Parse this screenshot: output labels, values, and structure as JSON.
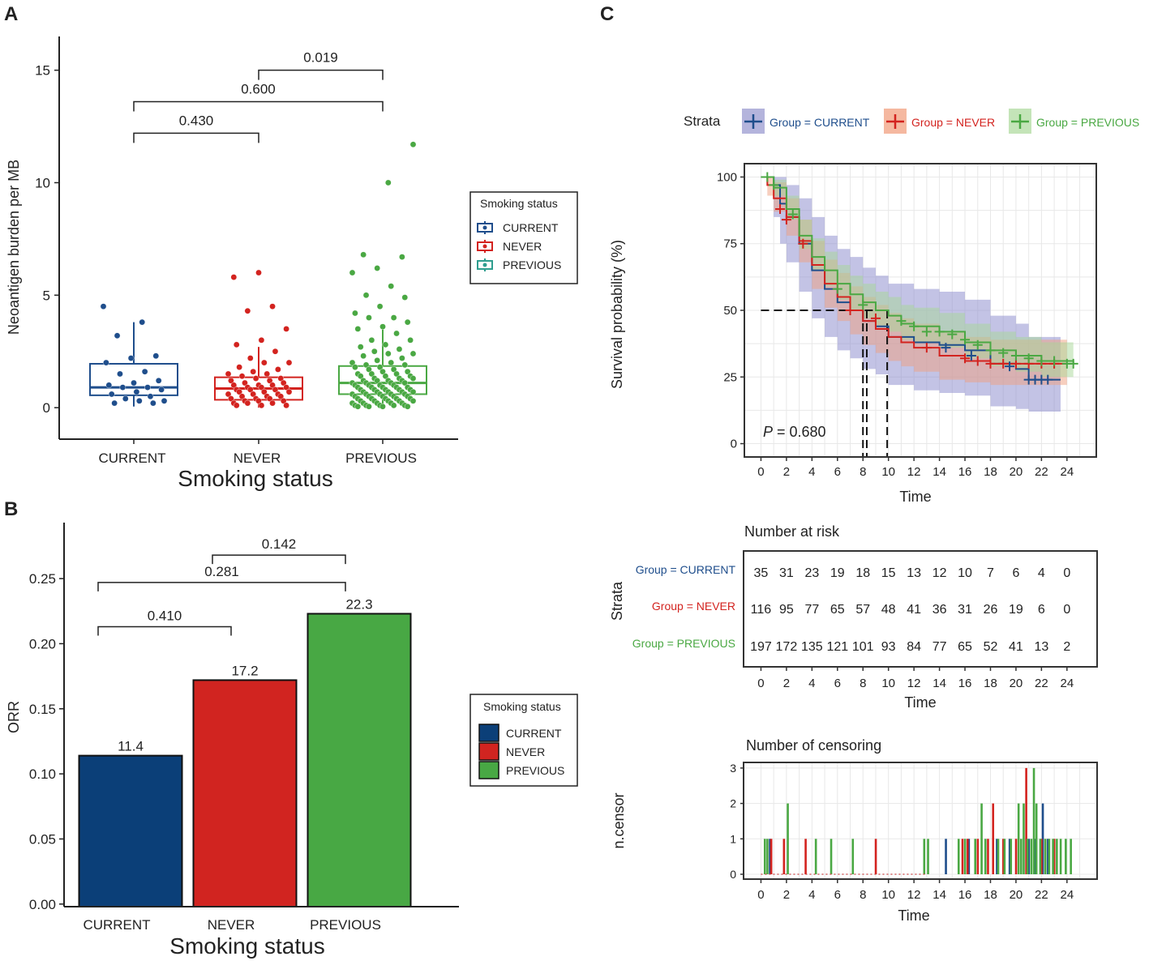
{
  "colors": {
    "current": "#1f4e8c",
    "never": "#d3231f",
    "previous": "#4aa843",
    "current_bar": "#0b3f78",
    "never_bar": "#d12420",
    "previous_bar": "#48a844",
    "previous_legend_box": "#2f9e8f"
  },
  "panels": {
    "a": "A",
    "b": "B",
    "c": "C"
  },
  "legend": {
    "title": "Smoking status",
    "items": [
      "CURRENT",
      "NEVER",
      "PREVIOUS"
    ]
  },
  "chart_data": [
    {
      "id": "A",
      "type": "box",
      "title": "",
      "xlabel": "Smoking status",
      "ylabel": "Neoantigen burden per MB",
      "categories": [
        "CURRENT",
        "NEVER",
        "PREVIOUS"
      ],
      "ylim": [
        -1.4,
        16.5
      ],
      "yticks": [
        0,
        5,
        10,
        15
      ],
      "boxes": [
        {
          "name": "CURRENT",
          "q1": 0.55,
          "median": 0.9,
          "q3": 1.95,
          "whisker_low": 0.05,
          "whisker_high": 3.8
        },
        {
          "name": "NEVER",
          "q1": 0.35,
          "median": 0.85,
          "q3": 1.35,
          "whisker_low": 0.0,
          "whisker_high": 2.7
        },
        {
          "name": "PREVIOUS",
          "q1": 0.6,
          "median": 1.1,
          "q3": 1.85,
          "whisker_low": 0.0,
          "whisker_high": 3.6
        }
      ],
      "points": {
        "CURRENT": [
          4.5,
          3.8,
          3.2,
          2.3,
          2.2,
          2.0,
          1.6,
          1.5,
          1.2,
          1.1,
          1.0,
          0.9,
          0.9,
          0.8,
          0.7,
          0.6,
          0.5,
          0.4,
          0.3,
          0.3,
          0.2,
          0.2
        ],
        "NEVER": [
          6.0,
          5.8,
          4.5,
          4.3,
          3.5,
          3.0,
          2.8,
          2.5,
          2.2,
          2.0,
          2.0,
          1.8,
          1.7,
          1.6,
          1.5,
          1.5,
          1.4,
          1.3,
          1.3,
          1.2,
          1.2,
          1.1,
          1.1,
          1.0,
          1.0,
          1.0,
          0.9,
          0.9,
          0.9,
          0.8,
          0.8,
          0.8,
          0.7,
          0.7,
          0.7,
          0.6,
          0.6,
          0.6,
          0.5,
          0.5,
          0.5,
          0.4,
          0.4,
          0.4,
          0.3,
          0.3,
          0.3,
          0.2,
          0.2,
          0.2,
          0.1,
          0.1,
          0.1
        ],
        "PREVIOUS": [
          11.7,
          10.0,
          6.8,
          6.7,
          6.2,
          6.0,
          5.4,
          5.0,
          4.9,
          4.5,
          4.2,
          4.0,
          4.0,
          3.8,
          3.6,
          3.5,
          3.3,
          3.0,
          3.0,
          2.8,
          2.7,
          2.6,
          2.5,
          2.4,
          2.4,
          2.3,
          2.2,
          2.1,
          2.0,
          2.0,
          1.9,
          1.9,
          1.8,
          1.8,
          1.7,
          1.7,
          1.6,
          1.6,
          1.5,
          1.5,
          1.5,
          1.4,
          1.4,
          1.4,
          1.3,
          1.3,
          1.3,
          1.2,
          1.2,
          1.2,
          1.2,
          1.1,
          1.1,
          1.1,
          1.1,
          1.0,
          1.0,
          1.0,
          1.0,
          0.9,
          0.9,
          0.9,
          0.9,
          0.9,
          0.8,
          0.8,
          0.8,
          0.8,
          0.8,
          0.7,
          0.7,
          0.7,
          0.7,
          0.7,
          0.6,
          0.6,
          0.6,
          0.6,
          0.6,
          0.5,
          0.5,
          0.5,
          0.5,
          0.5,
          0.4,
          0.4,
          0.4,
          0.4,
          0.4,
          0.3,
          0.3,
          0.3,
          0.3,
          0.3,
          0.2,
          0.2,
          0.2,
          0.2,
          0.2,
          0.1,
          0.1,
          0.1,
          0.1,
          0.1,
          0.05,
          0.05,
          0.05,
          0.05
        ]
      },
      "comparisons": [
        {
          "from": "CURRENT",
          "to": "NEVER",
          "p": "0.430",
          "y": 12.2
        },
        {
          "from": "CURRENT",
          "to": "PREVIOUS",
          "p": "0.600",
          "y": 13.6
        },
        {
          "from": "NEVER",
          "to": "PREVIOUS",
          "p": "0.019",
          "y": 15.0
        }
      ]
    },
    {
      "id": "B",
      "type": "bar",
      "title": "",
      "xlabel": "Smoking status",
      "ylabel": "ORR",
      "categories": [
        "CURRENT",
        "NEVER",
        "PREVIOUS"
      ],
      "values": [
        0.114,
        0.172,
        0.223
      ],
      "labels": [
        "11.4",
        "17.2",
        "22.3"
      ],
      "ylim": [
        -0.002,
        0.293
      ],
      "yticks": [
        0.0,
        0.05,
        0.1,
        0.15,
        0.2,
        0.25
      ],
      "ytick_labels": [
        "0.00",
        "0.05",
        "0.10",
        "0.15",
        "0.20",
        "0.25"
      ],
      "comparisons": [
        {
          "from": "CURRENT",
          "to": "NEVER",
          "p": "0.410",
          "y": 0.213
        },
        {
          "from": "CURRENT",
          "to": "PREVIOUS",
          "p": "0.281",
          "y": 0.247
        },
        {
          "from": "NEVER",
          "to": "PREVIOUS",
          "p": "0.142",
          "y": 0.268
        }
      ]
    },
    {
      "id": "C-survival",
      "type": "line",
      "title": "",
      "xlabel": "Time",
      "ylabel": "Survival probability (%)",
      "xlim": [
        -1.3,
        26.3
      ],
      "ylim": [
        -5,
        105
      ],
      "xticks": [
        0,
        2,
        4,
        6,
        8,
        10,
        12,
        14,
        16,
        18,
        20,
        22,
        24
      ],
      "yticks": [
        0,
        25,
        50,
        75,
        100
      ],
      "strata_label": "Strata",
      "legend_items": [
        "Group = CURRENT",
        "Group = NEVER",
        "Group = PREVIOUS"
      ],
      "pvalue_label": "P",
      "pvalue": "= 0.680",
      "median_line_y": 50,
      "median_times": [
        8.0,
        8.3,
        9.9
      ],
      "series": [
        {
          "name": "Group = CURRENT",
          "x": [
            0,
            1,
            1.5,
            2,
            3,
            4,
            5,
            6,
            7,
            8,
            9,
            10,
            12,
            14,
            16,
            18,
            20,
            21,
            22,
            23.5
          ],
          "y": [
            100,
            97,
            90,
            85,
            75,
            65,
            58,
            53,
            50,
            46,
            44,
            40,
            38,
            37,
            35,
            30,
            28,
            24,
            24,
            24
          ],
          "lower": [
            100,
            85,
            75,
            68,
            57,
            47,
            40,
            35,
            32,
            28,
            26,
            22,
            20,
            19,
            18,
            14,
            13,
            12,
            12,
            12
          ],
          "upper": [
            100,
            100,
            100,
            97,
            92,
            85,
            78,
            73,
            70,
            66,
            63,
            60,
            58,
            57,
            54,
            48,
            45,
            40,
            40,
            40
          ],
          "censor_x": [
            14.5,
            16.5,
            19.5,
            21,
            21.5,
            22,
            22.5
          ],
          "censor_y": [
            36,
            33,
            29,
            24,
            24,
            24,
            24
          ]
        },
        {
          "name": "Group = NEVER",
          "x": [
            0,
            0.5,
            1,
            2,
            3,
            4,
            5,
            6,
            7,
            8,
            9,
            10,
            11,
            12,
            14,
            16,
            18,
            20,
            22,
            24
          ],
          "y": [
            100,
            97,
            92,
            85,
            76,
            67,
            60,
            55,
            50,
            46,
            43,
            40,
            38,
            36,
            33,
            31,
            30,
            30,
            30,
            30
          ],
          "lower": [
            100,
            93,
            87,
            78,
            68,
            58,
            51,
            46,
            41,
            37,
            34,
            31,
            29,
            27,
            24,
            23,
            22,
            22,
            22,
            22
          ],
          "upper": [
            100,
            100,
            98,
            92,
            84,
            76,
            69,
            64,
            59,
            55,
            52,
            49,
            47,
            45,
            42,
            40,
            39,
            39,
            39,
            39
          ],
          "censor_x": [
            1.5,
            2,
            3.3,
            7,
            9,
            13,
            16,
            17,
            18,
            19,
            20,
            21,
            22,
            23
          ],
          "censor_y": [
            88,
            84,
            75,
            50,
            47,
            36,
            32,
            31,
            30,
            30,
            30,
            30,
            30,
            30
          ]
        },
        {
          "name": "Group = PREVIOUS",
          "x": [
            0,
            1,
            2,
            3,
            4,
            5,
            6,
            7,
            8,
            9,
            10,
            11,
            12,
            14,
            16,
            18,
            20,
            22,
            24.5
          ],
          "y": [
            100,
            96,
            88,
            78,
            70,
            65,
            60,
            56,
            53,
            50,
            48,
            45,
            44,
            42,
            38,
            35,
            33,
            31,
            30
          ],
          "lower": [
            100,
            93,
            84,
            73,
            65,
            59,
            54,
            50,
            47,
            44,
            42,
            39,
            38,
            36,
            32,
            29,
            27,
            25,
            24
          ],
          "upper": [
            100,
            99,
            93,
            84,
            77,
            72,
            67,
            63,
            60,
            57,
            55,
            52,
            51,
            49,
            45,
            42,
            40,
            38,
            37
          ],
          "censor_x": [
            0.5,
            1,
            2.5,
            6,
            8,
            11,
            12,
            13,
            14,
            15,
            16,
            17,
            18,
            19,
            20,
            21,
            22,
            23,
            24,
            24.5
          ],
          "censor_y": [
            100,
            97,
            86,
            58,
            52,
            46,
            44,
            42,
            42,
            41,
            39,
            37,
            35,
            34,
            33,
            32,
            31,
            31,
            30,
            30
          ]
        }
      ]
    },
    {
      "id": "C-risk",
      "type": "table",
      "title": "Number at risk",
      "xlabel": "Time",
      "ylabel": "Strata",
      "times": [
        0,
        2,
        4,
        6,
        8,
        10,
        12,
        14,
        16,
        18,
        20,
        22,
        24
      ],
      "rows": [
        {
          "name": "Group = CURRENT",
          "values": [
            "35",
            "31",
            "23",
            "19",
            "18",
            "15",
            "13",
            "12",
            "10",
            "7",
            "6",
            "4",
            "0"
          ]
        },
        {
          "name": "Group = NEVER",
          "values": [
            "116",
            "95",
            "77",
            "65",
            "57",
            "48",
            "41",
            "36",
            "31",
            "26",
            "19",
            "6",
            "0"
          ]
        },
        {
          "name": "Group = PREVIOUS",
          "values": [
            "197",
            "172",
            "135",
            "121",
            "101",
            "93",
            "84",
            "77",
            "65",
            "52",
            "41",
            "13",
            "2"
          ]
        }
      ]
    },
    {
      "id": "C-censor",
      "type": "bar",
      "title": "Number of censoring",
      "xlabel": "Time",
      "ylabel": "n.censor",
      "xticks": [
        0,
        2,
        4,
        6,
        8,
        10,
        12,
        14,
        16,
        18,
        20,
        22,
        24
      ],
      "yticks": [
        0,
        1,
        2,
        3
      ],
      "series": [
        {
          "name": "Group = CURRENT",
          "x": [
            0.7,
            14.5,
            16.3,
            18.5,
            19.5,
            21,
            21.5,
            22.1,
            22.5
          ],
          "values": [
            1,
            1,
            1,
            1,
            1,
            1,
            1,
            2,
            1
          ]
        },
        {
          "name": "Group = NEVER",
          "x": [
            0.8,
            1.8,
            3.5,
            9,
            15.8,
            16.2,
            17,
            17.8,
            18.2,
            19,
            20,
            20.8,
            22,
            23
          ],
          "values": [
            1,
            1,
            1,
            1,
            1,
            1,
            1,
            1,
            2,
            1,
            1,
            3,
            1,
            1
          ]
        },
        {
          "name": "Group = PREVIOUS",
          "x": [
            0.3,
            0.5,
            2.1,
            4.3,
            5.5,
            7.2,
            12.8,
            13.1,
            15.5,
            16,
            16.8,
            17.3,
            17.6,
            18.6,
            19.1,
            19.6,
            20.2,
            20.4,
            20.6,
            20.9,
            21.2,
            21.4,
            21.6,
            21.9,
            22.3,
            22.6,
            22.9,
            23.2,
            23.5,
            23.9,
            24.3
          ],
          "values": [
            1,
            1,
            2,
            1,
            1,
            1,
            1,
            1,
            1,
            1,
            1,
            2,
            1,
            1,
            1,
            1,
            2,
            1,
            2,
            1,
            1,
            3,
            2,
            1,
            1,
            1,
            1,
            1,
            1,
            1,
            1
          ]
        }
      ]
    }
  ]
}
